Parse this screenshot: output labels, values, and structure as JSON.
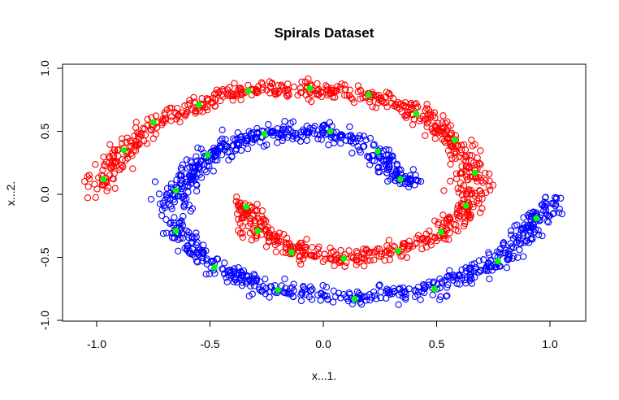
{
  "chart_data": {
    "type": "scatter",
    "title": "Spirals Dataset",
    "xlabel": "x...1.",
    "ylabel": "x...2.",
    "xlim": [
      -1.1,
      1.15
    ],
    "ylim": [
      -1.0,
      1.0
    ],
    "xticks": [
      "-1.0",
      "-0.5",
      "0.0",
      "0.5",
      "1.0"
    ],
    "yticks": [
      "-1.0",
      "-0.5",
      "0.0",
      "0.5",
      "1.0"
    ],
    "grid": false,
    "marker": "open-circle",
    "series": [
      {
        "color": "#ff0000",
        "description": "outer arm: starts near (-1.0, 0.05), arcs over the top through (0.0, 0.85), down the right side to (0.65, -0.1), then inward along the bottom to (-0.4, -0.1)",
        "path": [
          [
            -1.0,
            0.05
          ],
          [
            -0.97,
            0.12
          ],
          [
            -0.88,
            0.35
          ],
          [
            -0.75,
            0.57
          ],
          [
            -0.55,
            0.71
          ],
          [
            -0.33,
            0.82
          ],
          [
            -0.05,
            0.84
          ],
          [
            0.2,
            0.79
          ],
          [
            0.42,
            0.64
          ],
          [
            0.58,
            0.43
          ],
          [
            0.67,
            0.17
          ],
          [
            0.64,
            -0.09
          ],
          [
            0.53,
            -0.3
          ],
          [
            0.32,
            -0.45
          ],
          [
            0.08,
            -0.51
          ],
          [
            -0.12,
            -0.46
          ],
          [
            -0.28,
            -0.29
          ],
          [
            -0.35,
            -0.1
          ],
          [
            -0.38,
            -0.05
          ]
        ]
      },
      {
        "color": "#0000ff",
        "description": "inner arm: starts near (0.4, 0.05), arcs over the top through (0.0, 0.5), down the left side to (-0.65, -0.3), along the bottom through (0.1, -0.85) and up the right to (1.05, -0.05)",
        "path": [
          [
            0.42,
            0.07
          ],
          [
            0.34,
            0.12
          ],
          [
            0.24,
            0.34
          ],
          [
            0.03,
            0.5
          ],
          [
            -0.27,
            0.48
          ],
          [
            -0.5,
            0.31
          ],
          [
            -0.65,
            0.03
          ],
          [
            -0.65,
            -0.29
          ],
          [
            -0.48,
            -0.58
          ],
          [
            -0.2,
            -0.76
          ],
          [
            0.14,
            -0.83
          ],
          [
            0.49,
            -0.75
          ],
          [
            0.77,
            -0.53
          ],
          [
            0.94,
            -0.19
          ],
          [
            1.02,
            -0.05
          ]
        ]
      }
    ],
    "centers": {
      "color": "#00ff00",
      "marker": "filled-circle",
      "points": [
        [
          -0.97,
          0.12
        ],
        [
          -0.88,
          0.35
        ],
        [
          -0.75,
          0.57
        ],
        [
          -0.55,
          0.71
        ],
        [
          -0.33,
          0.82
        ],
        [
          -0.06,
          0.84
        ],
        [
          0.2,
          0.79
        ],
        [
          0.41,
          0.64
        ],
        [
          0.58,
          0.43
        ],
        [
          0.67,
          0.17
        ],
        [
          0.63,
          -0.09
        ],
        [
          0.52,
          -0.3
        ],
        [
          0.33,
          -0.45
        ],
        [
          0.09,
          -0.51
        ],
        [
          -0.14,
          -0.46
        ],
        [
          -0.29,
          -0.29
        ],
        [
          -0.34,
          -0.1
        ],
        [
          0.34,
          0.12
        ],
        [
          0.24,
          0.34
        ],
        [
          0.03,
          0.5
        ],
        [
          -0.26,
          0.48
        ],
        [
          -0.51,
          0.31
        ],
        [
          -0.65,
          0.03
        ],
        [
          -0.65,
          -0.29
        ],
        [
          -0.48,
          -0.58
        ],
        [
          -0.2,
          -0.76
        ],
        [
          0.14,
          -0.83
        ],
        [
          0.49,
          -0.75
        ],
        [
          0.77,
          -0.53
        ],
        [
          0.94,
          -0.19
        ]
      ]
    }
  }
}
